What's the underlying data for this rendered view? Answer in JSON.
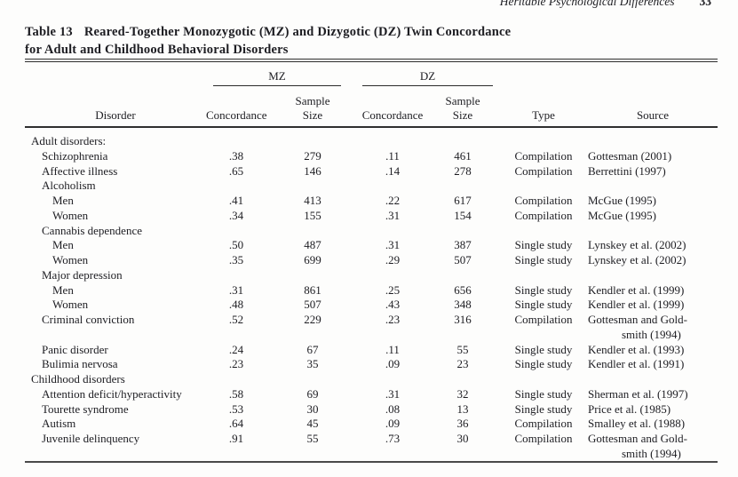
{
  "running_head": {
    "title": "Heritable Psychological Differences",
    "page_number": "33"
  },
  "table": {
    "label": "Table 13",
    "title_line1": "Reared-Together Monozygotic (MZ) and Dizygotic (DZ) Twin Concordance",
    "title_line2": "for Adult and Childhood Behavioral Disorders",
    "headers": {
      "disorder": "Disorder",
      "mz_group": "MZ",
      "dz_group": "DZ",
      "concordance": "Concordance",
      "sample_size": "Sample\nSize",
      "type": "Type",
      "source": "Source"
    },
    "rows": [
      {
        "indent": 0,
        "label": "Adult disorders:",
        "mz_c": "",
        "mz_n": "",
        "dz_c": "",
        "dz_n": "",
        "type": "",
        "source": ""
      },
      {
        "indent": 1,
        "label": "Schizophrenia",
        "mz_c": ".38",
        "mz_n": "279",
        "dz_c": ".11",
        "dz_n": "461",
        "type": "Compilation",
        "source": "Gottesman (2001)"
      },
      {
        "indent": 1,
        "label": "Affective illness",
        "mz_c": ".65",
        "mz_n": "146",
        "dz_c": ".14",
        "dz_n": "278",
        "type": "Compilation",
        "source": "Berrettini (1997)"
      },
      {
        "indent": 1,
        "label": "Alcoholism",
        "mz_c": "",
        "mz_n": "",
        "dz_c": "",
        "dz_n": "",
        "type": "",
        "source": ""
      },
      {
        "indent": 2,
        "label": "Men",
        "mz_c": ".41",
        "mz_n": "413",
        "dz_c": ".22",
        "dz_n": "617",
        "type": "Compilation",
        "source": "McGue (1995)"
      },
      {
        "indent": 2,
        "label": "Women",
        "mz_c": ".34",
        "mz_n": "155",
        "dz_c": ".31",
        "dz_n": "154",
        "type": "Compilation",
        "source": "McGue (1995)"
      },
      {
        "indent": 1,
        "label": "Cannabis dependence",
        "mz_c": "",
        "mz_n": "",
        "dz_c": "",
        "dz_n": "",
        "type": "",
        "source": ""
      },
      {
        "indent": 2,
        "label": "Men",
        "mz_c": ".50",
        "mz_n": "487",
        "dz_c": ".31",
        "dz_n": "387",
        "type": "Single study",
        "source": "Lynskey et al. (2002)"
      },
      {
        "indent": 2,
        "label": "Women",
        "mz_c": ".35",
        "mz_n": "699",
        "dz_c": ".29",
        "dz_n": "507",
        "type": "Single study",
        "source": "Lynskey et al. (2002)"
      },
      {
        "indent": 1,
        "label": "Major depression",
        "mz_c": "",
        "mz_n": "",
        "dz_c": "",
        "dz_n": "",
        "type": "",
        "source": ""
      },
      {
        "indent": 2,
        "label": "Men",
        "mz_c": ".31",
        "mz_n": "861",
        "dz_c": ".25",
        "dz_n": "656",
        "type": "Single study",
        "source": "Kendler et al. (1999)"
      },
      {
        "indent": 2,
        "label": "Women",
        "mz_c": ".48",
        "mz_n": "507",
        "dz_c": ".43",
        "dz_n": "348",
        "type": "Single study",
        "source": "Kendler et al. (1999)"
      },
      {
        "indent": 1,
        "label": "Criminal conviction",
        "mz_c": ".52",
        "mz_n": "229",
        "dz_c": ".23",
        "dz_n": "316",
        "type": "Compilation",
        "source": "Gottesman and Gold-",
        "source2": "smith (1994)"
      },
      {
        "indent": 1,
        "label": "Panic disorder",
        "mz_c": ".24",
        "mz_n": "67",
        "dz_c": ".11",
        "dz_n": "55",
        "type": "Single study",
        "source": "Kendler et al. (1993)"
      },
      {
        "indent": 1,
        "label": "Bulimia nervosa",
        "mz_c": ".23",
        "mz_n": "35",
        "dz_c": ".09",
        "dz_n": "23",
        "type": "Single study",
        "source": "Kendler et al. (1991)"
      },
      {
        "indent": 0,
        "label": "Childhood disorders",
        "mz_c": "",
        "mz_n": "",
        "dz_c": "",
        "dz_n": "",
        "type": "",
        "source": ""
      },
      {
        "indent": 1,
        "label": "Attention deficit/hyperactivity",
        "mz_c": ".58",
        "mz_n": "69",
        "dz_c": ".31",
        "dz_n": "32",
        "type": "Single study",
        "source": "Sherman et al. (1997)"
      },
      {
        "indent": 1,
        "label": "Tourette syndrome",
        "mz_c": ".53",
        "mz_n": "30",
        "dz_c": ".08",
        "dz_n": "13",
        "type": "Single study",
        "source": "Price et al. (1985)"
      },
      {
        "indent": 1,
        "label": "Autism",
        "mz_c": ".64",
        "mz_n": "45",
        "dz_c": ".09",
        "dz_n": "36",
        "type": "Compilation",
        "source": "Smalley et al. (1988)"
      },
      {
        "indent": 1,
        "label": "Juvenile delinquency",
        "mz_c": ".91",
        "mz_n": "55",
        "dz_c": ".73",
        "dz_n": "30",
        "type": "Compilation",
        "source": "Gottesman and Gold-",
        "source2": "smith (1994)"
      }
    ]
  },
  "colors": {
    "text": "#1d1d22",
    "rule": "#2e2e2e",
    "background": "#fdfdfc"
  }
}
